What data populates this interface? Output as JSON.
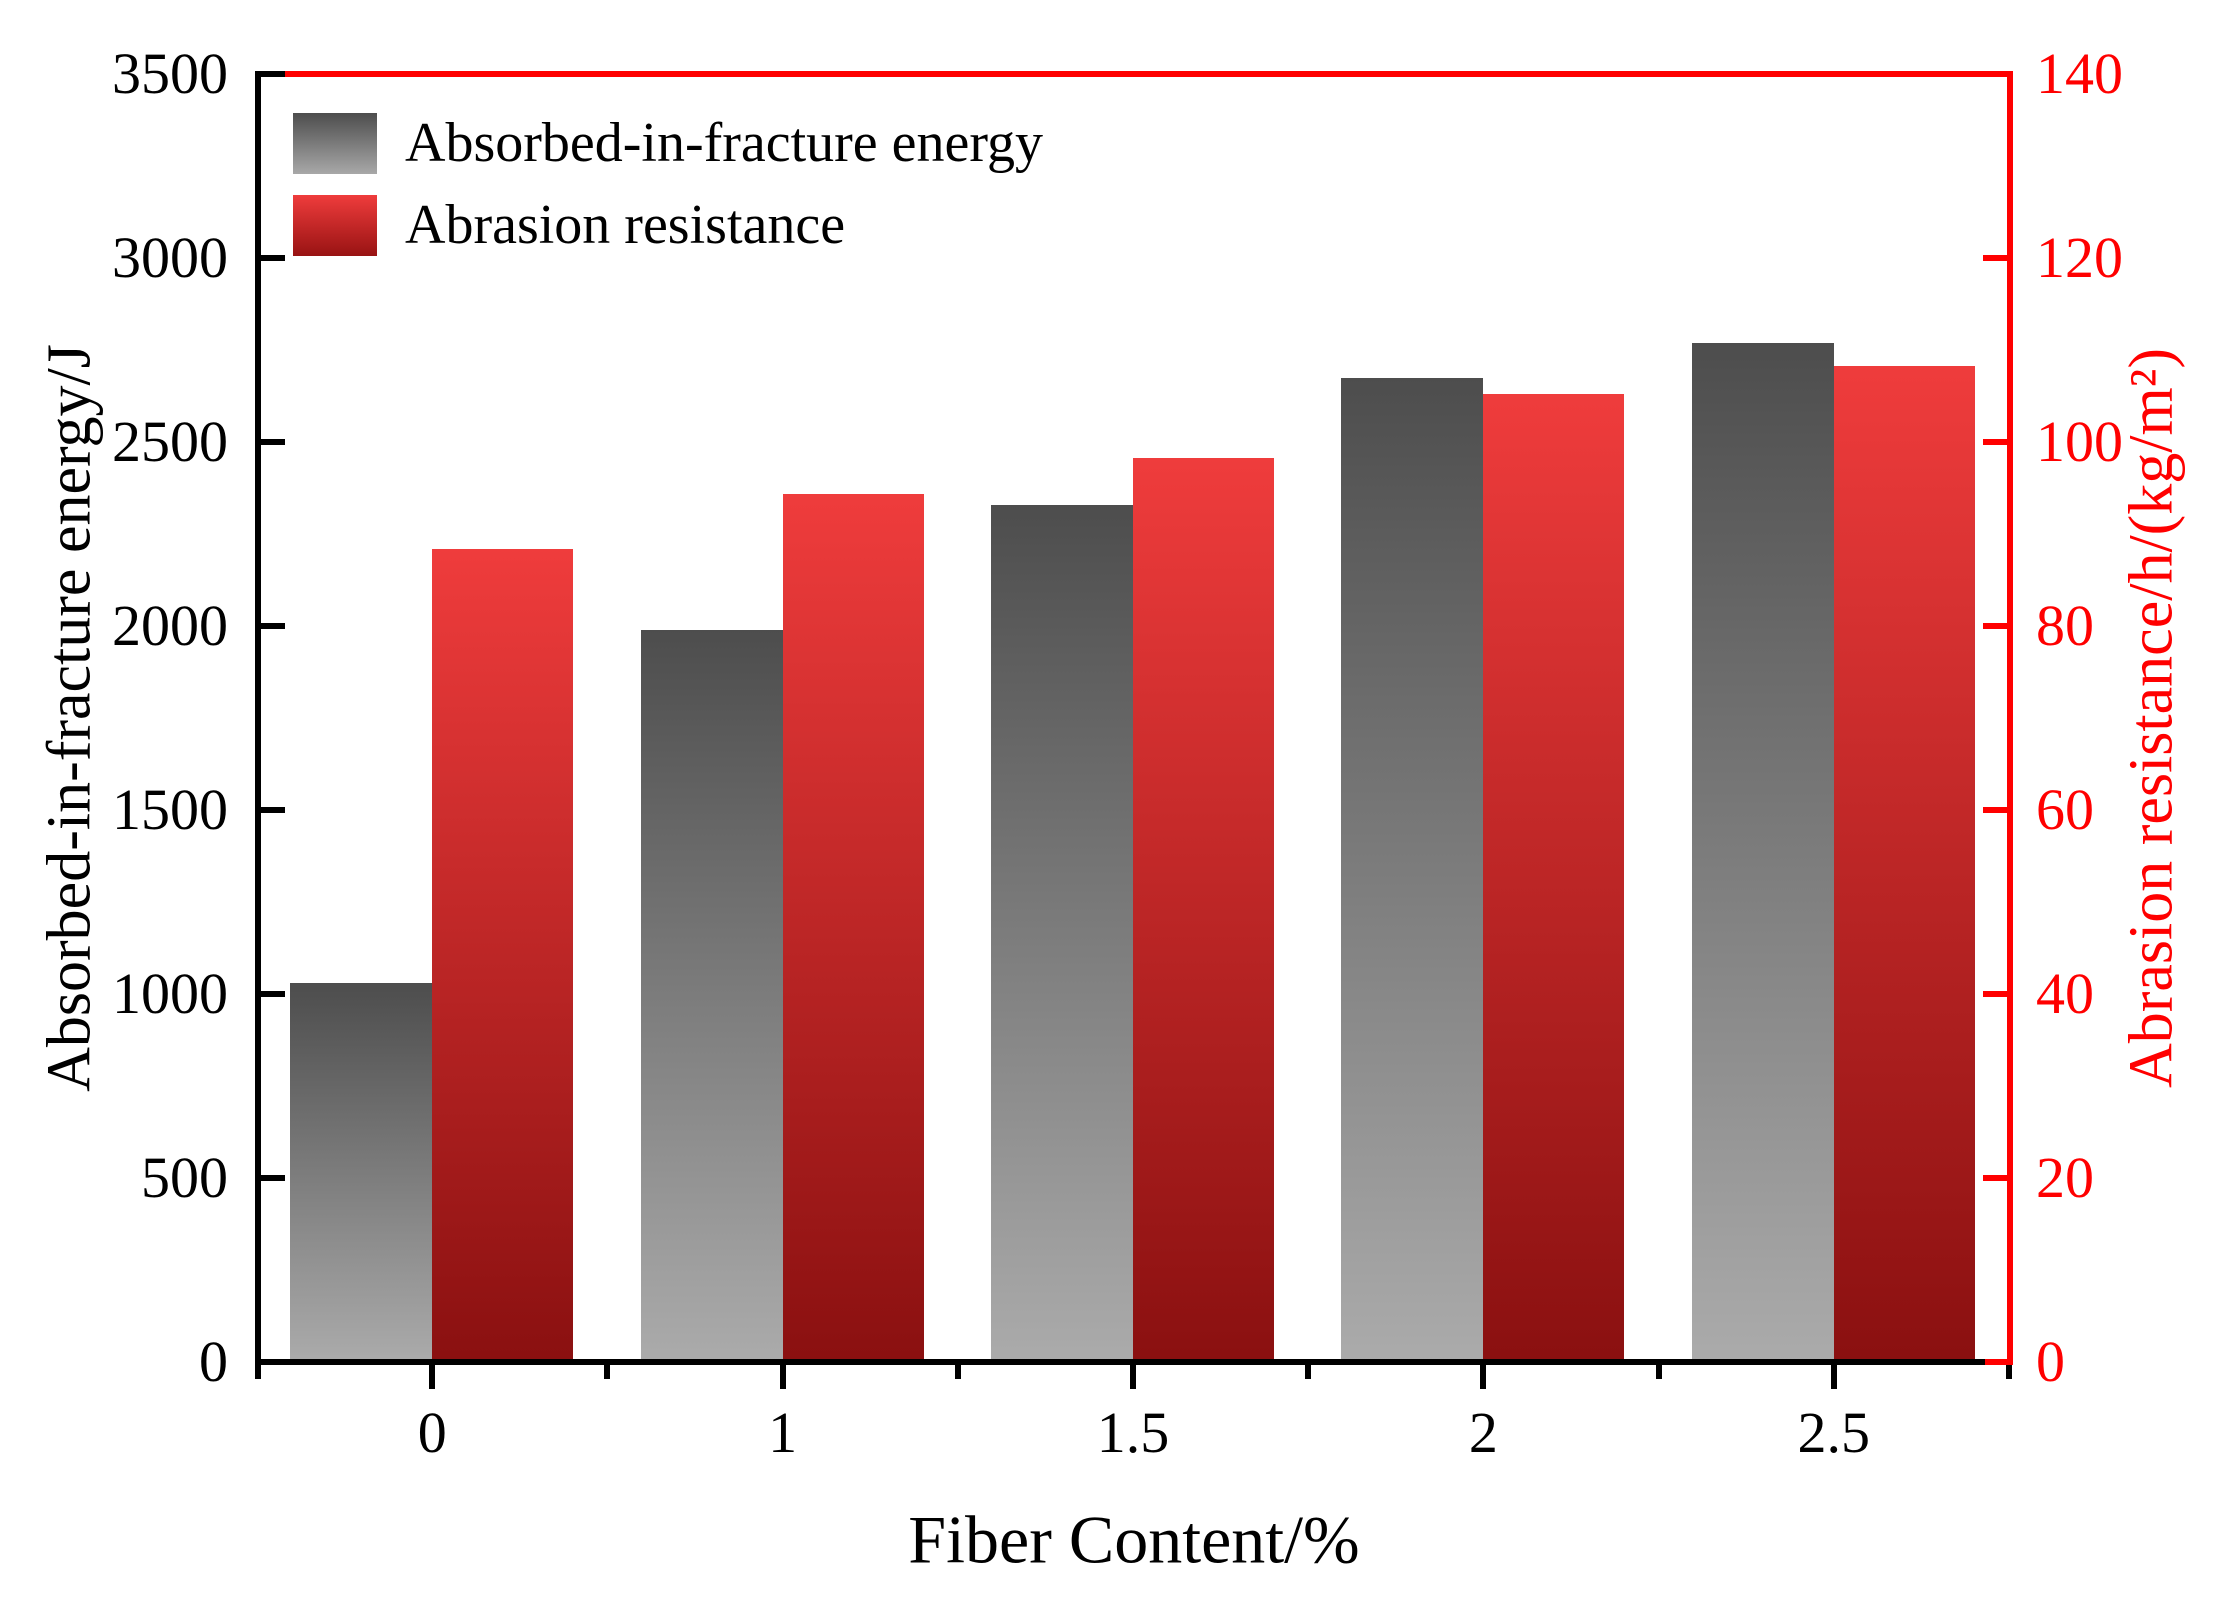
{
  "chart_data": {
    "type": "bar",
    "title": "",
    "categories": [
      "0",
      "1",
      "1.5",
      "2",
      "2.5"
    ],
    "series": [
      {
        "name": "Absorbed-in-fracture energy",
        "axis": "left",
        "values": [
          1030,
          1990,
          2330,
          2675,
          2770
        ],
        "color_top": "#4d4d4d",
        "color_bottom": "#ababab"
      },
      {
        "name": "Abrasion resistance",
        "axis": "right",
        "values": [
          88.4,
          94.3,
          98.3,
          105.2,
          108.3
        ],
        "color_top": "#ef3c3c",
        "color_bottom": "#8a1010"
      }
    ],
    "xlabel": "Fiber Content/%",
    "ylabel_left": "Absorbed-in-fracture energy/J",
    "ylabel_right": "Abrasion resistance/h/(kg/m²)",
    "left_axis": {
      "range": [
        0,
        3500
      ],
      "ticks": [
        0,
        500,
        1000,
        1500,
        2000,
        2500,
        3000,
        3500
      ],
      "color": "#000000",
      "tick_direction": "in"
    },
    "right_axis": {
      "range": [
        0,
        140
      ],
      "ticks": [
        0,
        20,
        40,
        60,
        80,
        100,
        120,
        140
      ],
      "color": "#ff0000",
      "tick_direction": "in"
    },
    "x_axis": {
      "tick_direction": "out",
      "minor_ticks_between_categories": true
    },
    "legend_position": "top-left",
    "grid": false
  }
}
